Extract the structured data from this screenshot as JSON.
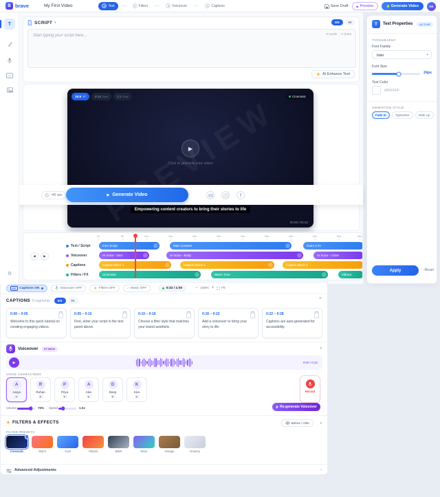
{
  "colors": {
    "accent_blue": "#2563eb",
    "accent_purple": "#7c3aed",
    "accent_amber": "#f59e0b",
    "accent_teal": "#14b8a6",
    "danger_red": "#ef4444",
    "success_green": "#22c55e"
  },
  "topbar": {
    "logo_letter": "B",
    "logo_text": "brave",
    "project_name": "My First Video",
    "steps": [
      {
        "num": "1",
        "label": "Text"
      },
      {
        "num": "2",
        "label": "Filters"
      },
      {
        "num": "3",
        "label": "Voiceover"
      },
      {
        "num": "4",
        "label": "Captions"
      }
    ],
    "save_draft": "Save Draft",
    "preview": "Preview",
    "generate": "Generate Video",
    "avatar_initials": "AK"
  },
  "script_panel": {
    "title": "SCRIPT",
    "lang_en": "EN",
    "lang_hi": "HI",
    "placeholder": "Start typing your script here...",
    "word_count": "0 words",
    "char_count": "0 chars",
    "ai_enhance": "AI Enhance Text"
  },
  "preview": {
    "ratios": [
      {
        "label": "16:9",
        "tag": "YT"
      },
      {
        "label": "9:16",
        "tag": "Reel"
      },
      {
        "label": "1:1",
        "tag": "Post"
      }
    ],
    "active_filter": "Cinematic",
    "watermark": "PREVIEW",
    "hint": "Click to preview your video",
    "caption_overlay": "Empowering content creators to bring their stories to life",
    "timecode": "00:00 / 00:32",
    "estimate": "~45 sec",
    "generate_button": "Generate Video"
  },
  "timeline": {
    "ticks": [
      "0s",
      "5s",
      "10s",
      "15s",
      "20s",
      "25s",
      "30s",
      "35s",
      "40s",
      "45s",
      "50s",
      "55s"
    ],
    "tracks": [
      {
        "name": "Text / Script",
        "clips": [
          {
            "label": "Intro Script"
          },
          {
            "label": "Main Content"
          },
          {
            "label": "Outro CTA"
          }
        ]
      },
      {
        "name": "Voiceover",
        "clips": [
          {
            "label": "AI Voice - Intro"
          },
          {
            "label": "AI Voice - Body"
          },
          {
            "label": "AI Voice - Close"
          }
        ]
      },
      {
        "name": "Captions",
        "clips": [
          {
            "label": "Caption Block 1"
          },
          {
            "label": "Caption Block 2"
          },
          {
            "label": "Caption Block 3"
          }
        ]
      },
      {
        "name": "Filters / FX",
        "clips": [
          {
            "label": "Cinematic"
          },
          {
            "label": "Warm Tone"
          },
          {
            "label": "Vibrant"
          }
        ]
      }
    ]
  },
  "toggles": {
    "captions_cc": "CC",
    "captions": "Captions ON",
    "voiceover": "Voiceover OFF",
    "filters": "Filters OFF",
    "music": "Music OFF",
    "time": "0:32 / 1:00",
    "zoom_value": "100%",
    "fit": "Fit"
  },
  "captions_panel": {
    "title": "CAPTIONS",
    "segments": "6 segments",
    "lang_en": "EN",
    "lang_hi": "HI",
    "cards": [
      {
        "time": "0:00 – 0:05",
        "text": "Welcome to this quick tutorial on creating engaging videos."
      },
      {
        "time": "0:05 – 0:10",
        "text": "First, enter your script in the text panel above."
      },
      {
        "time": "0:10 – 0:16",
        "text": "Choose a filter style that matches your brand aesthetic."
      },
      {
        "time": "0:16 – 0:22",
        "text": "Add a voiceover to bring your story to life."
      },
      {
        "time": "0:22 – 0:28",
        "text": "Captions are auto-generated for accessibility."
      }
    ]
  },
  "voiceover_panel": {
    "title": "Voiceover",
    "badge": "AI Voice",
    "timecode": "0:00 / 0:32",
    "characters_label": "VOICE CHARACTERS",
    "characters": [
      {
        "name": "Aarya",
        "initial": "A"
      },
      {
        "name": "Rohan",
        "initial": "R"
      },
      {
        "name": "Priya",
        "initial": "P"
      },
      {
        "name": "Alex",
        "initial": "A"
      },
      {
        "name": "Deep",
        "initial": "D"
      },
      {
        "name": "Kira",
        "initial": "K"
      }
    ],
    "record": "Record",
    "volume_label": "Volume",
    "volume_value": "75%",
    "speed_label": "Speed",
    "speed_value": "1.0x",
    "regenerate": "Re-generate Voiceover"
  },
  "filters_panel": {
    "title": "FILTERS & EFFECTS",
    "before_after": "Before / After",
    "presets_label": "FILTER PRESETS",
    "presets": [
      {
        "name": "Cinematic"
      },
      {
        "name": "Warm"
      },
      {
        "name": "Cool"
      },
      {
        "name": "Vibrant"
      },
      {
        "name": "B&W"
      },
      {
        "name": "Neon"
      },
      {
        "name": "Vintage"
      },
      {
        "name": "Dreamy"
      }
    ]
  },
  "advanced": {
    "label": "Advanced Adjustments"
  },
  "properties": {
    "title": "Text Properties",
    "badge": "ACTIVE",
    "typography": "TYPOGRAPHY",
    "font_family_label": "Font Family",
    "font_family": "Inter",
    "font_size_label": "Font Size",
    "font_size": "24px",
    "text_color_label": "Text Color",
    "text_color": "#FFFFFF",
    "animation_label": "ANIMATION STYLE",
    "animations": [
      {
        "name": "Fade In"
      },
      {
        "name": "Typewriter"
      },
      {
        "name": "Slide Up"
      }
    ],
    "apply": "Apply",
    "reset": "Reset"
  }
}
